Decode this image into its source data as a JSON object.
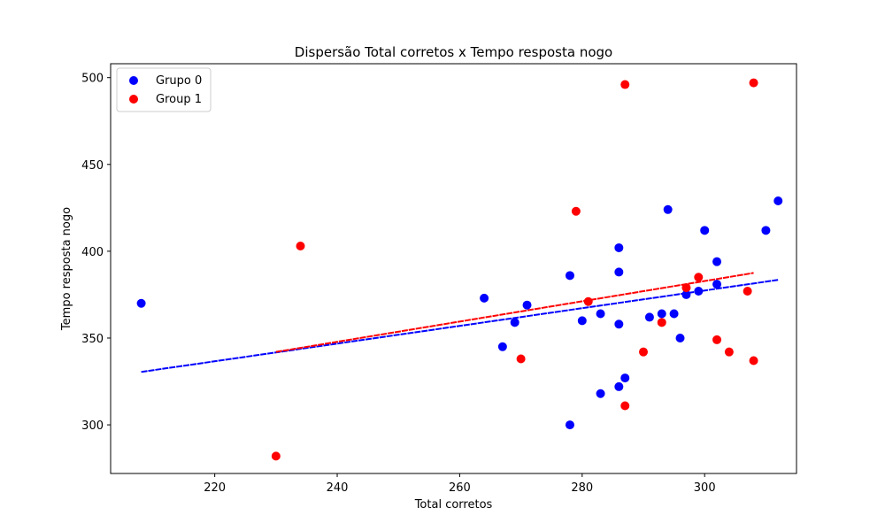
{
  "chart_data": {
    "type": "scatter",
    "title": "Dispersão Total corretos x Tempo resposta nogo",
    "xlabel": "Total corretos",
    "ylabel": "Tempo resposta nogo",
    "xlim": [
      203,
      315
    ],
    "ylim": [
      272,
      508
    ],
    "xticks": [
      220,
      240,
      260,
      280,
      300
    ],
    "yticks": [
      300,
      350,
      400,
      450,
      500
    ],
    "grid": false,
    "legend_position": "top-left",
    "series": [
      {
        "name": "Grupo 0",
        "color": "#0000ff",
        "points": [
          [
            208,
            370
          ],
          [
            264,
            373
          ],
          [
            267,
            345
          ],
          [
            269,
            359
          ],
          [
            271,
            369
          ],
          [
            278,
            386
          ],
          [
            278,
            300
          ],
          [
            280,
            360
          ],
          [
            283,
            364
          ],
          [
            283,
            318
          ],
          [
            286,
            402
          ],
          [
            286,
            388
          ],
          [
            286,
            358
          ],
          [
            286,
            322
          ],
          [
            287,
            327
          ],
          [
            291,
            362
          ],
          [
            293,
            364
          ],
          [
            294,
            424
          ],
          [
            295,
            364
          ],
          [
            296,
            350
          ],
          [
            297,
            375
          ],
          [
            299,
            377
          ],
          [
            300,
            412
          ],
          [
            302,
            394
          ],
          [
            302,
            381
          ],
          [
            310,
            412
          ],
          [
            312,
            429
          ]
        ],
        "trendline": {
          "x": [
            208,
            312
          ],
          "y": [
            330.5,
            383.5
          ]
        }
      },
      {
        "name": "Group 1",
        "color": "#ff0000",
        "points": [
          [
            230,
            282
          ],
          [
            234,
            403
          ],
          [
            270,
            338
          ],
          [
            279,
            423
          ],
          [
            281,
            371
          ],
          [
            287,
            496
          ],
          [
            287,
            311
          ],
          [
            290,
            342
          ],
          [
            293,
            359
          ],
          [
            297,
            379
          ],
          [
            299,
            385
          ],
          [
            302,
            349
          ],
          [
            304,
            342
          ],
          [
            307,
            377
          ],
          [
            308,
            497
          ],
          [
            308,
            337
          ]
        ],
        "trendline": {
          "x": [
            230,
            308
          ],
          "y": [
            342,
            387.5
          ]
        }
      }
    ]
  }
}
